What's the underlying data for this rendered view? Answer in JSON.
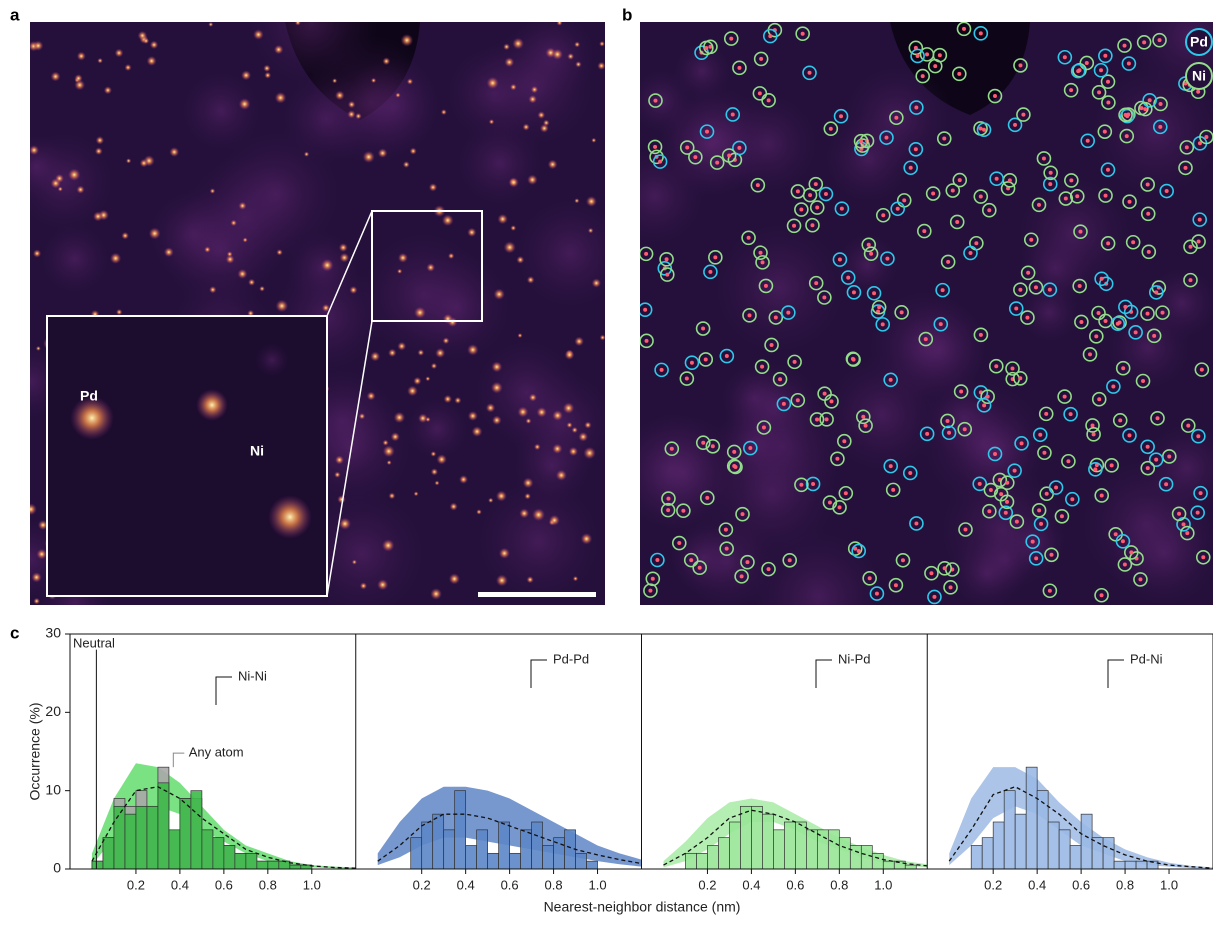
{
  "panels": {
    "a": {
      "label": "a",
      "inset_labels": [
        "Pd",
        "Ni"
      ]
    },
    "b": {
      "label": "b",
      "legend": [
        {
          "name": "Pd",
          "color": "#2ec8ea"
        },
        {
          "name": "Ni",
          "color": "#92dc8a"
        }
      ]
    }
  },
  "chart_data": {
    "type": "histogram",
    "label": "c",
    "xlabel": "Nearest-neighbor distance (nm)",
    "ylabel": "Occurrence (%)",
    "xlim": [
      -0.1,
      1.2
    ],
    "ylim": [
      0,
      30
    ],
    "yticks": [
      0,
      10,
      20,
      30
    ],
    "xticks": [
      0.2,
      0.4,
      0.6,
      0.8,
      {
        "value": 1,
        "label": "1.0"
      }
    ],
    "neutral": {
      "label": "Neutral",
      "value": 0.02
    },
    "bins": [
      0,
      0.05,
      0.1,
      0.15,
      0.2,
      0.25,
      0.3,
      0.35,
      0.4,
      0.45,
      0.5,
      0.55,
      0.6,
      0.65,
      0.7,
      0.75,
      0.8,
      0.85,
      0.9,
      0.95,
      1,
      1.05,
      1.1,
      1.15
    ],
    "fit_x": [
      0,
      0.1,
      0.2,
      0.3,
      0.4,
      0.5,
      0.6,
      0.7,
      0.8,
      0.9,
      1,
      1.1,
      1.2
    ],
    "series": [
      {
        "name": "Ni-Ni",
        "color": "#3cba48",
        "band_color": "#4fd85a",
        "values": [
          1,
          4,
          8,
          7,
          8,
          8,
          11,
          5,
          9,
          10,
          5,
          4,
          3,
          2,
          2,
          1,
          1,
          1,
          0.5,
          0.5,
          0,
          0,
          0
        ],
        "fit": [
          1,
          6,
          10,
          10.5,
          9,
          6.5,
          4.5,
          2.5,
          1.5,
          0.8,
          0.4,
          0.2,
          0.1
        ],
        "band_high": [
          2,
          9,
          13.5,
          13,
          11,
          8,
          5,
          3,
          2,
          1,
          0.5,
          0.3,
          0.2
        ],
        "band_low": [
          0.5,
          4,
          7,
          8,
          7,
          5,
          3.5,
          2,
          1,
          0.5,
          0.2,
          0.1,
          0
        ],
        "overlay": {
          "name": "Any atom",
          "color": "#a8a8a8",
          "values": [
            1,
            4,
            9,
            8,
            10,
            8,
            13,
            5,
            9,
            9,
            5,
            4,
            3,
            2,
            2,
            1,
            1,
            1,
            0.5,
            0.5,
            0,
            0,
            0
          ]
        }
      },
      {
        "name": "Pd-Pd",
        "color": "#5b86c6",
        "band_color": "#4a74bf",
        "values": [
          0,
          0,
          0,
          4,
          6,
          7,
          5,
          10,
          3,
          5,
          2,
          6,
          2,
          5,
          6,
          3,
          4,
          5,
          2,
          1,
          0,
          0,
          0
        ],
        "fit": [
          1,
          3,
          5.5,
          7,
          7,
          6.5,
          5.5,
          4.5,
          3.5,
          2.5,
          1.8,
          1.2,
          0.7
        ],
        "band_high": [
          2,
          6,
          9,
          10.5,
          10.5,
          10,
          9,
          7.5,
          6,
          4.5,
          3,
          2,
          1.2
        ],
        "band_low": [
          0.5,
          1.5,
          3,
          4,
          4,
          3.5,
          3,
          2.5,
          2,
          1.5,
          1,
          0.6,
          0.3
        ]
      },
      {
        "name": "Ni-Pd",
        "color": "#98e597",
        "band_color": "#9be89a",
        "values": [
          0,
          0,
          2,
          2,
          3,
          4,
          6,
          8,
          8,
          7,
          5,
          6,
          6,
          5,
          5,
          5,
          4,
          3,
          3,
          2,
          1,
          1,
          0.5
        ],
        "fit": [
          0.5,
          2,
          4,
          6.5,
          7.5,
          7,
          6,
          4.5,
          3,
          2,
          1.2,
          0.7,
          0.4
        ],
        "band_high": [
          1,
          3.5,
          6.5,
          8.5,
          9,
          8.5,
          7,
          5.5,
          4,
          2.8,
          1.8,
          1,
          0.6
        ],
        "band_low": [
          0.2,
          1,
          2.5,
          4.5,
          6,
          6,
          5,
          3.5,
          2.5,
          1.5,
          0.8,
          0.4,
          0.2
        ]
      },
      {
        "name": "Pd-Ni",
        "color": "#9ab9e6",
        "band_color": "#8fb0e0",
        "values": [
          0,
          0,
          3,
          4,
          6,
          10,
          7,
          13,
          10,
          6,
          5,
          3,
          7,
          4,
          4,
          1,
          1,
          1,
          1,
          0,
          0,
          0,
          0
        ],
        "fit": [
          1,
          5,
          9.5,
          10.5,
          9,
          7,
          4.5,
          3,
          1.8,
          1,
          0.5,
          0.3,
          0.1
        ],
        "band_high": [
          2,
          9,
          13,
          13,
          11.5,
          8.5,
          6,
          4,
          2.5,
          1.5,
          0.8,
          0.4,
          0.2
        ],
        "band_low": [
          0.5,
          3,
          6.5,
          8,
          7,
          5,
          3,
          2,
          1,
          0.5,
          0.3,
          0.1,
          0
        ]
      }
    ]
  }
}
